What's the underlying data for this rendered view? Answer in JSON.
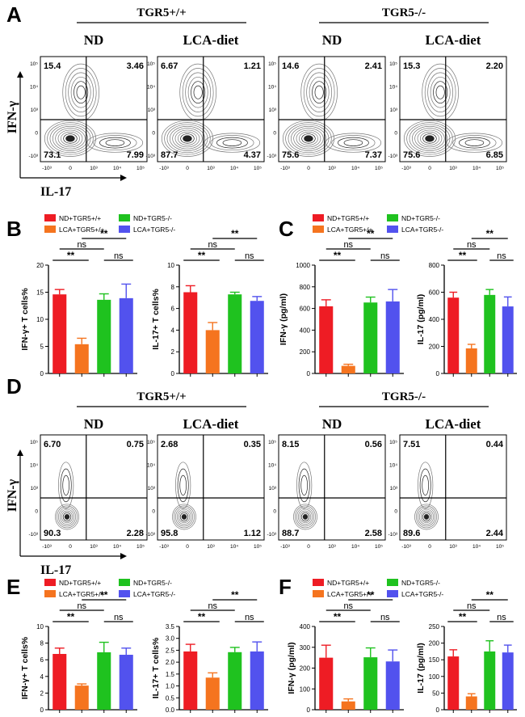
{
  "panel_letters": [
    "A",
    "B",
    "C",
    "D",
    "E",
    "F"
  ],
  "colors": {
    "nd_wt": "#ee1c24",
    "lca_wt": "#f5741f",
    "nd_ko": "#1fc21f",
    "lca_ko": "#5252ee"
  },
  "flow_panels": [
    {
      "letter": "A",
      "genotypes": [
        "TGR5+/+",
        "TGR5-/-"
      ],
      "conditions": [
        "ND",
        "LCA-diet",
        "ND",
        "LCA-diet"
      ],
      "y_axis_label": "IFN-γ",
      "x_axis_label": "IL-17",
      "y_ticks": [
        "10⁵",
        "10⁴",
        "10³",
        "0",
        "-10³"
      ],
      "x_ticks": [
        "-10³",
        "0",
        "10³",
        "10⁴",
        "10⁵"
      ],
      "plots": [
        {
          "ul": "15.4",
          "ur": "3.46",
          "ll": "73.1",
          "lr": "7.99"
        },
        {
          "ul": "6.67",
          "ur": "1.21",
          "ll": "87.7",
          "lr": "4.37"
        },
        {
          "ul": "14.6",
          "ur": "2.41",
          "ll": "75.6",
          "lr": "7.37"
        },
        {
          "ul": "15.3",
          "ur": "2.20",
          "ll": "75.6",
          "lr": "6.85"
        }
      ]
    },
    {
      "letter": "D",
      "genotypes": [
        "TGR5+/+",
        "TGR5-/-"
      ],
      "conditions": [
        "ND",
        "LCA-diet",
        "ND",
        "LCA-diet"
      ],
      "y_axis_label": "IFN-γ",
      "x_axis_label": "IL-17",
      "y_ticks": [
        "10⁵",
        "10⁴",
        "10³",
        "0",
        "-10³"
      ],
      "x_ticks": [
        "-10³",
        "0",
        "10³",
        "10⁴",
        "10⁵"
      ],
      "plots": [
        {
          "ul": "6.70",
          "ur": "0.75",
          "ll": "90.3",
          "lr": "2.28"
        },
        {
          "ul": "2.68",
          "ur": "0.35",
          "ll": "95.8",
          "lr": "1.12"
        },
        {
          "ul": "8.15",
          "ur": "0.56",
          "ll": "88.7",
          "lr": "2.58"
        },
        {
          "ul": "7.51",
          "ur": "0.44",
          "ll": "89.6",
          "lr": "2.44"
        }
      ]
    }
  ],
  "legend": [
    "ND+TGR5+/+",
    "LCA+TGR5+/+",
    "ND+TGR5-/-",
    "LCA+TGR5-/-"
  ],
  "chart_data": [
    {
      "type": "bar",
      "panel": "B",
      "ylabel": "IFN-γ+ T cells%",
      "ylim": [
        0,
        20
      ],
      "yticks": [
        "0",
        "5",
        "10",
        "15",
        "20"
      ],
      "categories": [
        "ND+TGR5+/+",
        "LCA+TGR5+/+",
        "ND+TGR5-/-",
        "LCA+TGR5-/-"
      ],
      "values": [
        14.6,
        5.4,
        13.6,
        13.9
      ],
      "errors": [
        0.9,
        1.1,
        1.1,
        2.6
      ],
      "significance": [
        {
          "from": 0,
          "to": 1,
          "label": "**"
        },
        {
          "from": 0,
          "to": 2,
          "label": "ns"
        },
        {
          "from": 2,
          "to": 3,
          "label": "ns"
        },
        {
          "from": 1,
          "to": 3,
          "label": "**"
        }
      ]
    },
    {
      "type": "bar",
      "panel": "B",
      "ylabel": "IL-17+ T cells%",
      "ylim": [
        0,
        10
      ],
      "yticks": [
        "0",
        "2",
        "4",
        "6",
        "8",
        "10"
      ],
      "categories": [
        "ND+TGR5+/+",
        "LCA+TGR5+/+",
        "ND+TGR5-/-",
        "LCA+TGR5-/-"
      ],
      "values": [
        7.5,
        4.0,
        7.3,
        6.7
      ],
      "errors": [
        0.6,
        0.7,
        0.2,
        0.4
      ],
      "significance": [
        {
          "from": 0,
          "to": 1,
          "label": "**"
        },
        {
          "from": 0,
          "to": 2,
          "label": "ns"
        },
        {
          "from": 2,
          "to": 3,
          "label": "ns"
        },
        {
          "from": 1,
          "to": 3,
          "label": "**"
        }
      ]
    },
    {
      "type": "bar",
      "panel": "C",
      "ylabel": "IFN-γ (pg/ml)",
      "ylim": [
        0,
        1000
      ],
      "yticks": [
        "0",
        "200",
        "400",
        "600",
        "800",
        "1000"
      ],
      "categories": [
        "ND+TGR5+/+",
        "LCA+TGR5+/+",
        "ND+TGR5-/-",
        "LCA+TGR5-/-"
      ],
      "values": [
        620,
        70,
        655,
        665
      ],
      "errors": [
        60,
        15,
        50,
        110
      ],
      "significance": [
        {
          "from": 0,
          "to": 1,
          "label": "**"
        },
        {
          "from": 0,
          "to": 2,
          "label": "ns"
        },
        {
          "from": 2,
          "to": 3,
          "label": "ns"
        },
        {
          "from": 1,
          "to": 3,
          "label": "**"
        }
      ]
    },
    {
      "type": "bar",
      "panel": "C",
      "ylabel": "IL-17 (pg/ml)",
      "ylim": [
        0,
        800
      ],
      "yticks": [
        "0",
        "200",
        "400",
        "600",
        "800"
      ],
      "categories": [
        "ND+TGR5+/+",
        "LCA+TGR5+/+",
        "ND+TGR5-/-",
        "LCA+TGR5-/-"
      ],
      "values": [
        560,
        185,
        580,
        495
      ],
      "errors": [
        40,
        30,
        40,
        70
      ],
      "significance": [
        {
          "from": 0,
          "to": 1,
          "label": "**"
        },
        {
          "from": 0,
          "to": 2,
          "label": "ns"
        },
        {
          "from": 2,
          "to": 3,
          "label": "ns"
        },
        {
          "from": 1,
          "to": 3,
          "label": "**"
        }
      ]
    },
    {
      "type": "bar",
      "panel": "E",
      "ylabel": "IFN-γ+ T cells%",
      "ylim": [
        0,
        10
      ],
      "yticks": [
        "0",
        "2",
        "4",
        "6",
        "8",
        "10"
      ],
      "categories": [
        "ND+TGR5+/+",
        "LCA+TGR5+/+",
        "ND+TGR5-/-",
        "LCA+TGR5-/-"
      ],
      "values": [
        6.7,
        2.9,
        6.9,
        6.6
      ],
      "errors": [
        0.7,
        0.2,
        1.2,
        0.8
      ],
      "significance": [
        {
          "from": 0,
          "to": 1,
          "label": "**"
        },
        {
          "from": 0,
          "to": 2,
          "label": "ns"
        },
        {
          "from": 2,
          "to": 3,
          "label": "ns"
        },
        {
          "from": 1,
          "to": 3,
          "label": "**"
        }
      ]
    },
    {
      "type": "bar",
      "panel": "E",
      "ylabel": "IL-17+ T cells%",
      "ylim": [
        0,
        3.5
      ],
      "yticks": [
        "0.0",
        "0.5",
        "1.0",
        "1.5",
        "2.0",
        "2.5",
        "3.0",
        "3.5"
      ],
      "categories": [
        "ND+TGR5+/+",
        "LCA+TGR5+/+",
        "ND+TGR5-/-",
        "LCA+TGR5-/-"
      ],
      "values": [
        2.45,
        1.35,
        2.42,
        2.45
      ],
      "errors": [
        0.3,
        0.2,
        0.2,
        0.4
      ],
      "significance": [
        {
          "from": 0,
          "to": 1,
          "label": "**"
        },
        {
          "from": 0,
          "to": 2,
          "label": "ns"
        },
        {
          "from": 2,
          "to": 3,
          "label": "ns"
        },
        {
          "from": 1,
          "to": 3,
          "label": "**"
        }
      ]
    },
    {
      "type": "bar",
      "panel": "F",
      "ylabel": "IFN-γ (pg/ml)",
      "ylim": [
        0,
        400
      ],
      "yticks": [
        "0",
        "100",
        "200",
        "300",
        "400"
      ],
      "categories": [
        "ND+TGR5+/+",
        "LCA+TGR5+/+",
        "ND+TGR5-/-",
        "LCA+TGR5-/-"
      ],
      "values": [
        250,
        40,
        252,
        232
      ],
      "errors": [
        60,
        12,
        45,
        55
      ],
      "significance": [
        {
          "from": 0,
          "to": 1,
          "label": "**"
        },
        {
          "from": 0,
          "to": 2,
          "label": "ns"
        },
        {
          "from": 2,
          "to": 3,
          "label": "ns"
        },
        {
          "from": 1,
          "to": 3,
          "label": "**"
        }
      ]
    },
    {
      "type": "bar",
      "panel": "F",
      "ylabel": "IL-17 (pg/ml)",
      "ylim": [
        0,
        250
      ],
      "yticks": [
        "0",
        "50",
        "100",
        "150",
        "200",
        "250"
      ],
      "categories": [
        "ND+TGR5+/+",
        "LCA+TGR5+/+",
        "ND+TGR5-/-",
        "LCA+TGR5-/-"
      ],
      "values": [
        160,
        40,
        175,
        172
      ],
      "errors": [
        20,
        8,
        32,
        22
      ],
      "significance": [
        {
          "from": 0,
          "to": 1,
          "label": "**"
        },
        {
          "from": 0,
          "to": 2,
          "label": "ns"
        },
        {
          "from": 2,
          "to": 3,
          "label": "ns"
        },
        {
          "from": 1,
          "to": 3,
          "label": "**"
        }
      ]
    }
  ]
}
